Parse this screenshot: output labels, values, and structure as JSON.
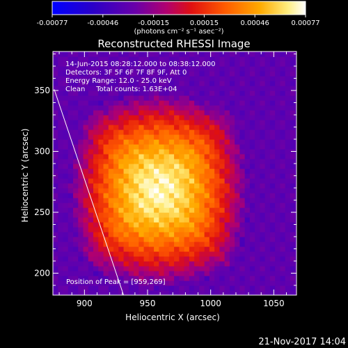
{
  "colorbar": {
    "tick_labels": [
      "-0.00077",
      "-0.00046",
      "-0.00015",
      "0.00015",
      "0.00046",
      "0.00077"
    ],
    "units": "(photons cm⁻² s⁻¹ asec⁻²)",
    "vmin": -0.00077,
    "vmax": 0.00077
  },
  "chart_data": {
    "type": "heatmap",
    "title": "Reconstructed RHESSI Image",
    "xlabel": "Heliocentric X (arcsec)",
    "ylabel": "Heliocentric Y (arcsec)",
    "xlim": [
      875,
      1068
    ],
    "ylim": [
      182,
      382
    ],
    "xticks": [
      900,
      950,
      1000,
      1050
    ],
    "yticks": [
      200,
      250,
      300,
      350
    ],
    "info_lines": [
      "14-Jun-2015 08:28:12.000 to 08:38:12.000",
      "Detectors: 3F 5F 6F 7F 8F 9F, Att 0",
      "Energy Range: 12.0 - 25.0 keV",
      "Clean     Total counts: 1.63E+04"
    ],
    "peak_label": "Position of Peak = [959,269]",
    "peak": [
      959,
      269
    ],
    "limb_line": [
      [
        876,
        351
      ],
      [
        931,
        182
      ]
    ]
  },
  "footer": {
    "timestamp": "21-Nov-2017 14:04"
  }
}
